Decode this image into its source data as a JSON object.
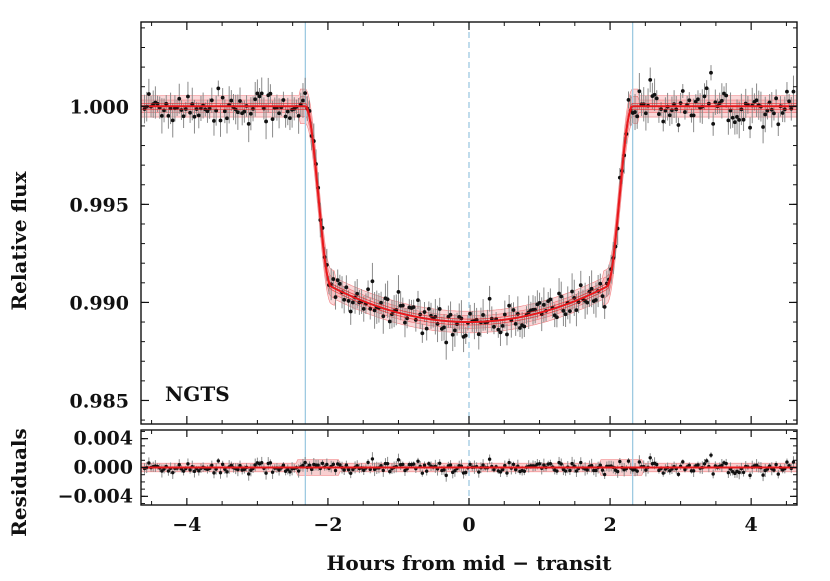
{
  "chart_data": [
    {
      "type": "scatter",
      "panel": "main",
      "title": "",
      "xlabel": "Hours from mid − transit",
      "ylabel": "Relative flux",
      "xlim": [
        -4.65,
        4.65
      ],
      "ylim": [
        0.9838,
        1.0043
      ],
      "yticks": [
        0.985,
        0.99,
        0.995,
        1.0
      ],
      "yticklabels": [
        "0.985",
        "0.990",
        "0.995",
        "1.000"
      ],
      "xticks": [
        -4,
        -2,
        0,
        2,
        4
      ],
      "xticklabels": [
        "−4",
        "−2",
        "0",
        "2",
        "4"
      ],
      "annotation": "NGTS",
      "model": {
        "name": "transit model",
        "depth": 0.011,
        "baseline": 1.0,
        "t_ingress_start": -2.32,
        "t_ingress_end": -1.95,
        "t_egress_start": 1.95,
        "t_egress_end": 2.32,
        "limb_curvature": 0.0018
      },
      "vlines": [
        {
          "x": -2.32,
          "style": "solid",
          "color": "#9ecae1"
        },
        {
          "x": 0.0,
          "style": "dashed",
          "color": "#9ecae1"
        },
        {
          "x": 2.32,
          "style": "solid",
          "color": "#9ecae1"
        }
      ],
      "series": [
        {
          "name": "NGTS data",
          "n_points": 300,
          "scatter": 0.00045,
          "color": "#111111"
        }
      ]
    },
    {
      "type": "scatter",
      "panel": "residuals",
      "ylabel": "Residuals",
      "xlim": [
        -4.65,
        4.65
      ],
      "ylim": [
        -0.0052,
        0.0052
      ],
      "yticks": [
        -0.004,
        0.0,
        0.004
      ],
      "yticklabels": [
        "−0.004",
        "0.000",
        "0.004"
      ],
      "zero_line": 0.0
    }
  ],
  "colors": {
    "model": "#e8191d",
    "band": "#f4a8aa",
    "points": "#111111",
    "errorbars": "#8a8a8a",
    "vlines": "#9ecae1"
  }
}
